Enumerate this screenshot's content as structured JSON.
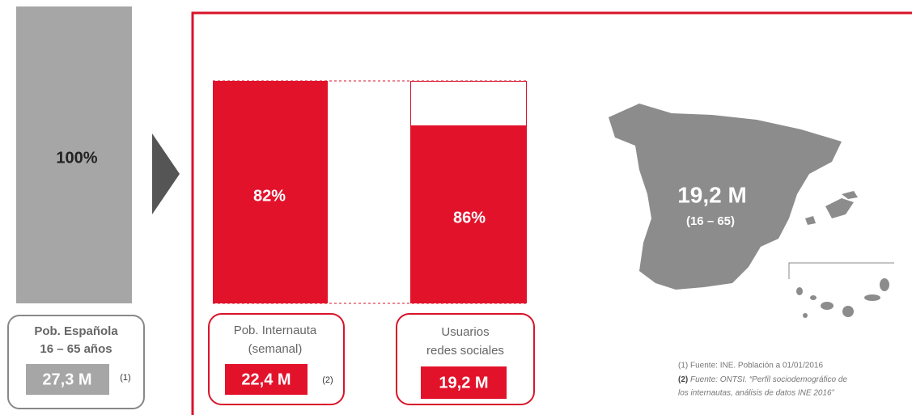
{
  "left": {
    "percent": "100%",
    "label_lines": [
      "Pob. Española",
      "16 – 65 años"
    ],
    "total": "27,3 M",
    "note": "(1)"
  },
  "internautas": {
    "percent": "82%",
    "label_lines": [
      "Pob. Internauta",
      "(semanal)"
    ],
    "total": "22,4 M",
    "note": "(2)"
  },
  "redes": {
    "percent": "86%",
    "label_lines": [
      "Usuarios",
      "redes sociales"
    ],
    "total": "19,2 M"
  },
  "map": {
    "value": "19,2 M",
    "range": "(16 – 65)"
  },
  "sources": {
    "line1": "(1) Fuente: INE. Población a 01/01/2016",
    "line2_mark": "(2)",
    "line2_text": " Fuente: ONTSI. “Perfil sociodemográfico de",
    "line3": "los internautas, análisis de datos INE 2016”"
  }
}
